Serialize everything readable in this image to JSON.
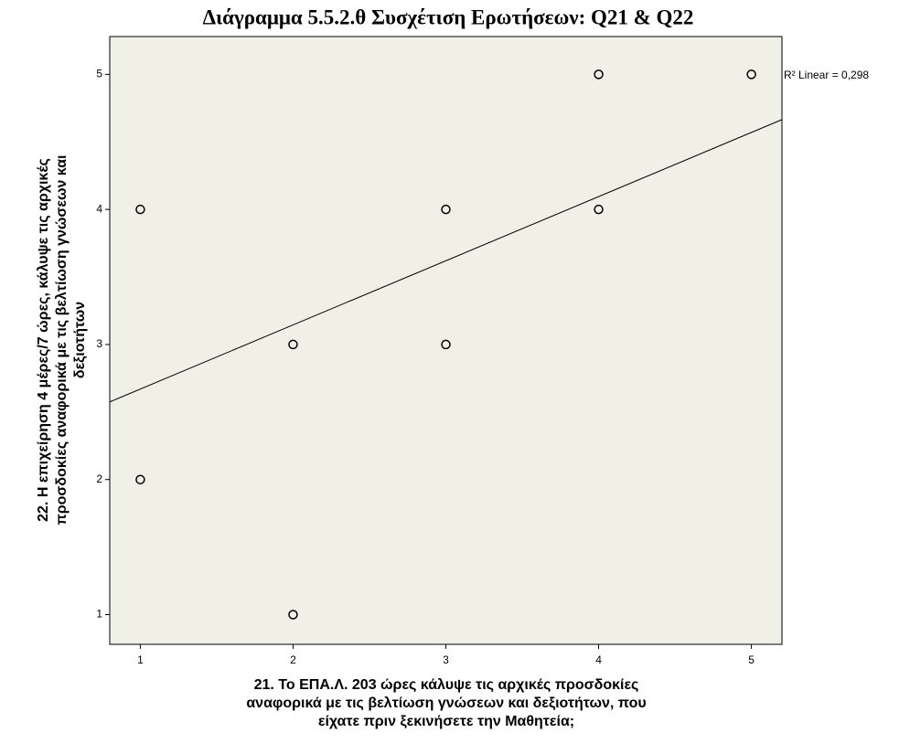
{
  "chart_data": {
    "type": "scatter",
    "title": "Διάγραμμα 5.5.2.θ  Συσχέτιση Ερωτήσεων: Q21 & Q22",
    "xlabel": [
      "21. Το ΕΠΑ.Λ. 203 ώρες κάλυψε τις αρχικές προσδοκίες",
      "αναφορικά με τις βελτίωση γνώσεων και δεξιοτήτων, που",
      "είχατε πριν ξεκινήσετε την Μαθητεία;"
    ],
    "ylabel": [
      "22. Η επιχείρηση  4 μέρες/7 ώρες, κάλυψε τις αρχικές",
      "προσδοκίες αναφορικά με τις βελτίωση γνώσεων και",
      "δεξιοτήτων"
    ],
    "x": [
      1,
      1,
      2,
      2,
      3,
      3,
      4,
      4,
      5
    ],
    "values": [
      4,
      2,
      3,
      1,
      4,
      3,
      5,
      4,
      5
    ],
    "xlim": [
      0.8,
      5.2
    ],
    "xticks": [
      1,
      2,
      3,
      4,
      5
    ],
    "ylim": [
      0.78,
      5.28
    ],
    "yticks": [
      1,
      2,
      3,
      4,
      5
    ],
    "fit": {
      "slope": 0.475,
      "intercept": 2.195
    },
    "annotation": "R² Linear = 0,298",
    "color": "#000000",
    "background": "#f1f0e6"
  }
}
